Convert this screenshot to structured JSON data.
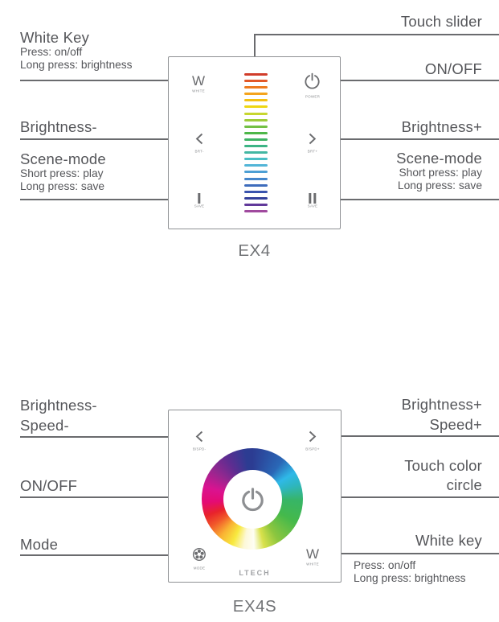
{
  "colors": {
    "title_text": "#55565a",
    "sub_text": "#55565a",
    "line": "#6a6b6e",
    "dot": "#3d3e40",
    "panel_border": "#8f9194",
    "glyph": "#6b6c6f",
    "tiny_label": "#8d8f92",
    "caption": "#717376",
    "brand": "#a0a2a5",
    "power_icon_large": "#8d8f92"
  },
  "ex4": {
    "caption": "EX4",
    "annotations": {
      "white_key": {
        "title": "White Key",
        "sub1": "Press: on/off",
        "sub2": "Long press: brightness"
      },
      "brightness_minus": {
        "title": "Brightness-"
      },
      "scene_left": {
        "title": "Scene-mode",
        "sub1": "Short press: play",
        "sub2": "Long press: save"
      },
      "touch_slider": {
        "title": "Touch slider"
      },
      "on_off": {
        "title": "ON/OFF"
      },
      "brightness_plus": {
        "title": "Brightness+"
      },
      "scene_right": {
        "title": "Scene-mode",
        "sub1": "Short press: play",
        "sub2": "Long press: save"
      }
    },
    "keys": {
      "white": {
        "glyph": "W",
        "label": "WHITE"
      },
      "power": {
        "icon": "power-icon",
        "label": "POWER"
      },
      "brt_minus": {
        "icon": "chevron-left-icon",
        "label": "BRT-"
      },
      "brt_plus": {
        "icon": "chevron-right-icon",
        "label": "BRT+"
      },
      "scene_play": {
        "glyph": "I",
        "label": "SAVE"
      },
      "scene_save": {
        "glyph": "II",
        "label": "SAVE"
      }
    },
    "slider": {
      "colors": [
        "#d13c2a",
        "#e25829",
        "#ee7b20",
        "#f4a41d",
        "#f3c114",
        "#eed713",
        "#c7d62f",
        "#9ecb3b",
        "#73c044",
        "#4db748",
        "#3eb364",
        "#3cb485",
        "#43b7a3",
        "#4abec5",
        "#52b5d7",
        "#4c9fd4",
        "#4486cb",
        "#3e6cbc",
        "#3a54ae",
        "#34419b",
        "#61399a",
        "#a04a9e"
      ]
    }
  },
  "ex4s": {
    "caption": "EX4S",
    "brand": "LTECH",
    "annotations": {
      "brightness_speed_minus": {
        "line1": "Brightness-",
        "line2": "Speed-"
      },
      "on_off": {
        "title": "ON/OFF"
      },
      "mode": {
        "title": "Mode"
      },
      "brightness_speed_plus": {
        "line1": "Brightness+",
        "line2": "Speed+"
      },
      "touch_color_circle": {
        "line1": "Touch color",
        "line2": "circle"
      },
      "white_key": {
        "title": "White key",
        "sub1": "Press: on/off",
        "sub2": "Long press: brightness"
      }
    },
    "keys": {
      "speed_minus": {
        "icon": "chevron-left-icon",
        "label": "B/SPD-"
      },
      "speed_plus": {
        "icon": "chevron-right-icon",
        "label": "B/SPD+"
      },
      "mode": {
        "icon": "mode-wheel-icon",
        "label": "MODE"
      },
      "white": {
        "glyph": "W",
        "label": "WHITE"
      }
    },
    "wheel": {
      "stops": [
        {
          "deg": 0,
          "color": "#2c3c92"
        },
        {
          "deg": 38,
          "color": "#2a67b6"
        },
        {
          "deg": 58,
          "color": "#2fb9e8"
        },
        {
          "deg": 72,
          "color": "#2eb6c0"
        },
        {
          "deg": 92,
          "color": "#37b566"
        },
        {
          "deg": 118,
          "color": "#45b94b"
        },
        {
          "deg": 148,
          "color": "#8cc63f"
        },
        {
          "deg": 166,
          "color": "#d9e14b"
        },
        {
          "deg": 178,
          "color": "#fefef4"
        },
        {
          "deg": 190,
          "color": "#fdf8d8"
        },
        {
          "deg": 204,
          "color": "#f8e93e"
        },
        {
          "deg": 220,
          "color": "#f9b233"
        },
        {
          "deg": 236,
          "color": "#f1592a"
        },
        {
          "deg": 250,
          "color": "#e8232b"
        },
        {
          "deg": 266,
          "color": "#e40b74"
        },
        {
          "deg": 284,
          "color": "#da1390"
        },
        {
          "deg": 306,
          "color": "#96278f"
        },
        {
          "deg": 328,
          "color": "#5e2d91"
        },
        {
          "deg": 352,
          "color": "#2c3c92"
        },
        {
          "deg": 360,
          "color": "#2c3c92"
        }
      ]
    }
  }
}
